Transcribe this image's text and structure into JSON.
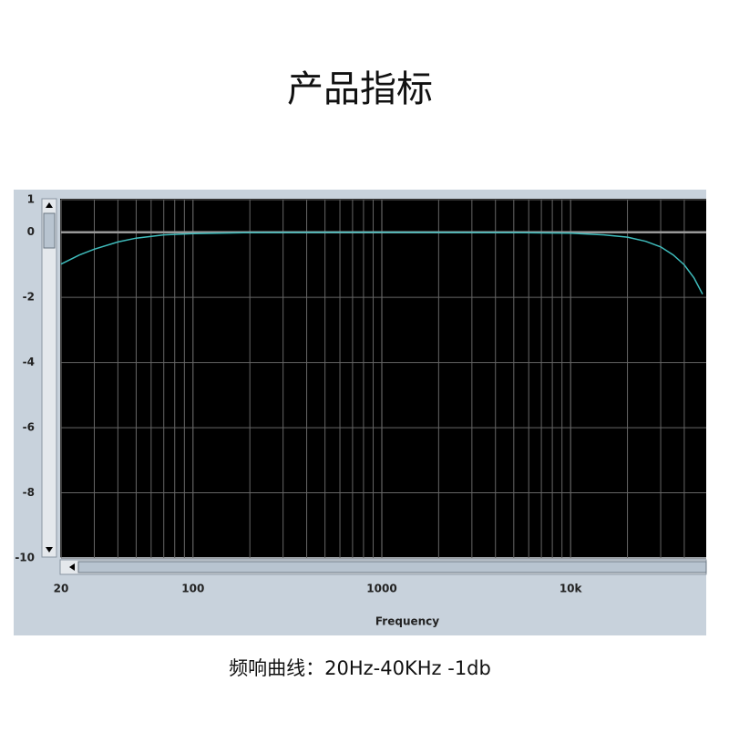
{
  "header": {
    "title": "产品指标"
  },
  "chart_data": {
    "type": "line",
    "x_axis_label": "Frequency",
    "log_x": true,
    "x": [
      20,
      25,
      30,
      40,
      50,
      70,
      100,
      200,
      1000,
      5000,
      10000,
      15000,
      20000,
      25000,
      30000,
      35000,
      40000,
      45000,
      50000
    ],
    "series": [
      {
        "color": "#3fbcbc",
        "values": [
          -0.98,
          -0.7,
          -0.52,
          -0.3,
          -0.18,
          -0.08,
          -0.04,
          -0.01,
          0,
          -0.01,
          -0.03,
          -0.08,
          -0.15,
          -0.28,
          -0.45,
          -0.7,
          -1.0,
          -1.4,
          -1.9
        ]
      }
    ],
    "xlim": [
      20,
      50000
    ],
    "xticks": [
      20,
      100,
      1000,
      {
        "value": 10000,
        "label": "10k"
      }
    ],
    "x_minor_grid": [
      30,
      40,
      50,
      60,
      70,
      80,
      90,
      200,
      300,
      400,
      500,
      600,
      700,
      800,
      900,
      2000,
      3000,
      4000,
      5000,
      6000,
      7000,
      8000,
      9000,
      20000,
      30000,
      40000
    ],
    "ylim": [
      -10,
      1
    ],
    "yticks": [
      1,
      0,
      -2,
      -4,
      -6,
      -8,
      -10
    ],
    "grid": true
  },
  "caption": "频响曲线：20Hz-40KHz -1db"
}
